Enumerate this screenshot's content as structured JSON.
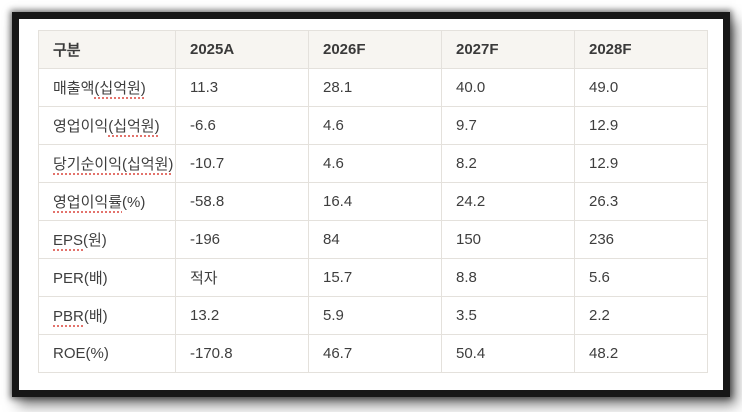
{
  "colors": {
    "frame_border": "#171717",
    "table_border": "#e4e1dc",
    "header_background": "#f7f5f1",
    "text": "#3e3e3e",
    "spellcheck_underline": "#e3736c"
  },
  "chart_data": {
    "type": "table",
    "title": "",
    "columns": [
      "구분",
      "2025A",
      "2026F",
      "2027F",
      "2028F"
    ],
    "rows": [
      {
        "label": "매출액(십억원)",
        "label_segments": [
          {
            "text": "매출액",
            "misspelled": false
          },
          {
            "text": "(십억원)",
            "misspelled": true
          }
        ],
        "values": [
          "11.3",
          "28.1",
          "40.0",
          "49.0"
        ]
      },
      {
        "label": "영업이익(십억원)",
        "label_segments": [
          {
            "text": "영업이익",
            "misspelled": false
          },
          {
            "text": "(십억원)",
            "misspelled": true
          }
        ],
        "values": [
          "-6.6",
          "4.6",
          "9.7",
          "12.9"
        ]
      },
      {
        "label": "당기순이익(십억원)",
        "label_segments": [
          {
            "text": "당기순이익(십억원)",
            "misspelled": true
          }
        ],
        "values": [
          "-10.7",
          "4.6",
          "8.2",
          "12.9"
        ]
      },
      {
        "label": "영업이익률(%)",
        "label_segments": [
          {
            "text": "영업이익률",
            "misspelled": true
          },
          {
            "text": "(%)",
            "misspelled": false
          }
        ],
        "values": [
          "-58.8",
          "16.4",
          "24.2",
          "26.3"
        ]
      },
      {
        "label": "EPS(원)",
        "label_segments": [
          {
            "text": "EPS",
            "misspelled": true
          },
          {
            "text": "(원)",
            "misspelled": false
          }
        ],
        "values": [
          "-196",
          "84",
          "150",
          "236"
        ]
      },
      {
        "label": "PER(배)",
        "label_segments": [
          {
            "text": "PER(배)",
            "misspelled": false
          }
        ],
        "values": [
          "적자",
          "15.7",
          "8.8",
          "5.6"
        ]
      },
      {
        "label": "PBR(배)",
        "label_segments": [
          {
            "text": "PBR",
            "misspelled": true
          },
          {
            "text": "(배)",
            "misspelled": false
          }
        ],
        "values": [
          "13.2",
          "5.9",
          "3.5",
          "2.2"
        ]
      },
      {
        "label": "ROE(%)",
        "label_segments": [
          {
            "text": "ROE(%)",
            "misspelled": false
          }
        ],
        "values": [
          "-170.8",
          "46.7",
          "50.4",
          "48.2"
        ]
      }
    ]
  }
}
